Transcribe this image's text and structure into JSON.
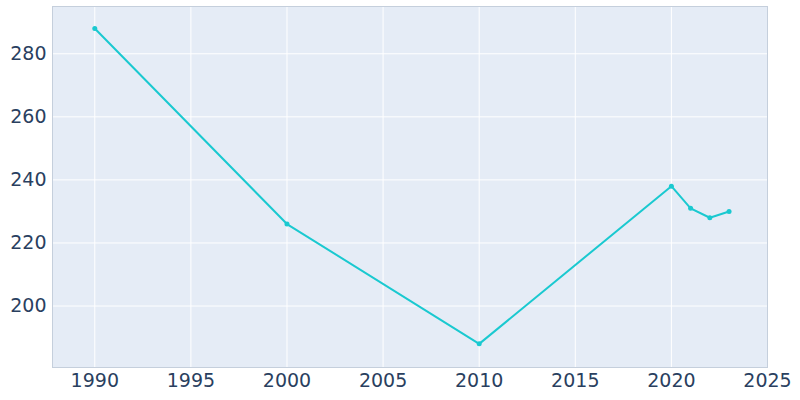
{
  "chart_data": {
    "type": "line",
    "x": [
      1990,
      2000,
      2010,
      2020,
      2021,
      2022,
      2023
    ],
    "values": [
      288,
      226,
      188,
      238,
      231,
      228,
      230
    ],
    "color": "#1ac9d0",
    "marker": "circle",
    "xlim": [
      1987.8,
      2025
    ],
    "xticks": [
      1990,
      1995,
      2000,
      2005,
      2010,
      2015,
      2020,
      2025
    ],
    "ylim": [
      180.5,
      295
    ],
    "yticks": [
      200,
      220,
      240,
      260,
      280
    ],
    "grid": true
  }
}
